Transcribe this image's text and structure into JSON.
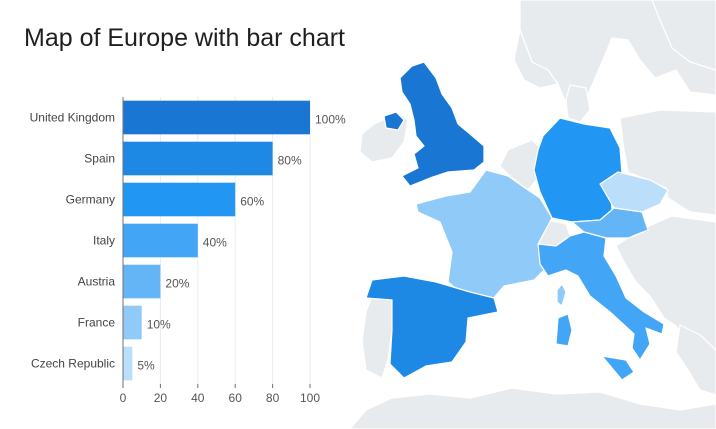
{
  "title": "Map of Europe with bar chart",
  "chart_data": {
    "type": "bar",
    "orientation": "horizontal",
    "title": "Map of Europe with bar chart",
    "categories": [
      "United Kingdom",
      "Spain",
      "Germany",
      "Italy",
      "Austria",
      "France",
      "Czech Republic"
    ],
    "values": [
      100,
      80,
      60,
      40,
      20,
      10,
      5
    ],
    "value_labels": [
      "100%",
      "80%",
      "60%",
      "40%",
      "20%",
      "10%",
      "5%"
    ],
    "xlim": [
      0,
      100
    ],
    "xticks": [
      0,
      20,
      40,
      60,
      80,
      100
    ],
    "xlabel": "",
    "ylabel": "",
    "grid": true,
    "colors": [
      "#1976d2",
      "#1e88e5",
      "#2196f3",
      "#42a5f5",
      "#64b5f6",
      "#90caf9",
      "#bbdefb"
    ]
  },
  "map": {
    "background_land_color": "#e8ebee",
    "background_border_color": "#ffffff",
    "highlighted": [
      {
        "country": "United Kingdom",
        "value": 100,
        "color": "#1976d2"
      },
      {
        "country": "Spain",
        "value": 80,
        "color": "#1e88e5"
      },
      {
        "country": "Germany",
        "value": 60,
        "color": "#2196f3"
      },
      {
        "country": "Italy",
        "value": 40,
        "color": "#42a5f5"
      },
      {
        "country": "Austria",
        "value": 20,
        "color": "#64b5f6"
      },
      {
        "country": "France",
        "value": 10,
        "color": "#90caf9"
      },
      {
        "country": "Czech Republic",
        "value": 5,
        "color": "#bbdefb"
      }
    ]
  }
}
